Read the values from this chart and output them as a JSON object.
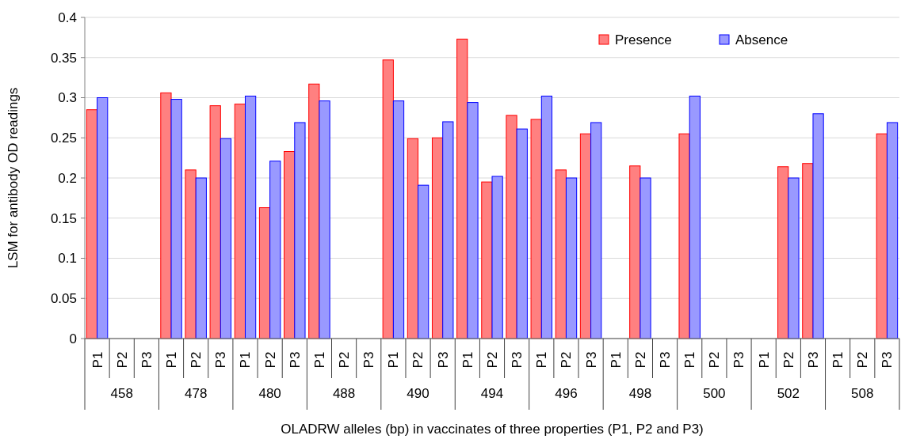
{
  "chart_data": {
    "type": "bar",
    "xlabel": "OLADRW alleles (bp) in vaccinates of three properties (P1, P2 and P3)",
    "ylabel": "LSM for antibody OD readings",
    "categories": [
      "P1",
      "P2",
      "P3",
      "P1",
      "P2",
      "P3",
      "P1",
      "P2",
      "P3",
      "P1",
      "P2",
      "P3",
      "P1",
      "P2",
      "P3",
      "P1",
      "P2",
      "P3",
      "P1",
      "P2",
      "P3",
      "P1",
      "P2",
      "P3",
      "P1",
      "P2",
      "P3",
      "P1",
      "P2",
      "P3",
      "P1",
      "P2",
      "P3"
    ],
    "annotations": [
      "458",
      "478",
      "480",
      "488",
      "490",
      "494",
      "496",
      "498",
      "500",
      "502",
      "508"
    ],
    "series": [
      {
        "name": "Presence",
        "color": "#ff8080",
        "values": [
          0.285,
          null,
          null,
          0.306,
          0.21,
          0.29,
          0.292,
          0.163,
          0.233,
          0.317,
          null,
          null,
          0.347,
          0.249,
          0.25,
          0.373,
          0.195,
          0.278,
          0.273,
          0.21,
          0.255,
          null,
          0.215,
          null,
          0.255,
          null,
          null,
          null,
          0.214,
          0.218,
          null,
          null,
          0.255
        ]
      },
      {
        "name": "Absence",
        "color": "#9999ff",
        "values": [
          0.3,
          null,
          null,
          0.298,
          0.2,
          0.249,
          0.302,
          0.221,
          0.269,
          0.296,
          null,
          null,
          0.296,
          0.191,
          0.27,
          0.294,
          0.202,
          0.261,
          0.302,
          0.2,
          0.269,
          null,
          0.2,
          null,
          0.302,
          null,
          null,
          null,
          0.2,
          0.28,
          null,
          null,
          0.269
        ]
      }
    ],
    "ylim": [
      0,
      0.4
    ],
    "yticks": [
      0,
      0.05,
      0.1,
      0.15,
      0.2,
      0.25,
      0.3,
      0.35,
      0.4
    ],
    "grid": "y",
    "legend": "top right"
  }
}
